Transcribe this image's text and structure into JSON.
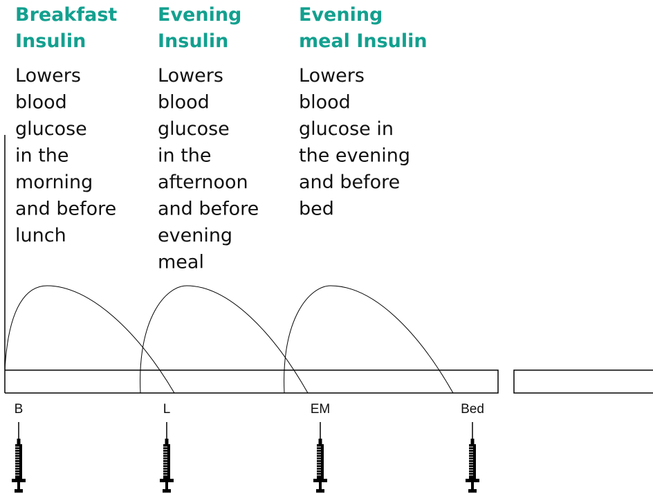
{
  "columns": [
    {
      "title": [
        "Breakfast",
        "Insulin"
      ],
      "description": [
        "Lowers",
        "blood",
        "glucose",
        "in the",
        "morning",
        "and before",
        "lunch"
      ]
    },
    {
      "title": [
        "Evening",
        "Insulin"
      ],
      "description": [
        "Lowers",
        "blood",
        "glucose",
        "in the",
        "afternoon",
        "and before",
        "evening",
        "meal"
      ]
    },
    {
      "title": [
        "Evening",
        "meal Insulin"
      ],
      "description": [
        "Lowers",
        "blood",
        "glucose in",
        "the evening",
        "and before",
        "bed"
      ]
    }
  ],
  "times": [
    "B",
    "L",
    "EM",
    "Bed"
  ]
}
